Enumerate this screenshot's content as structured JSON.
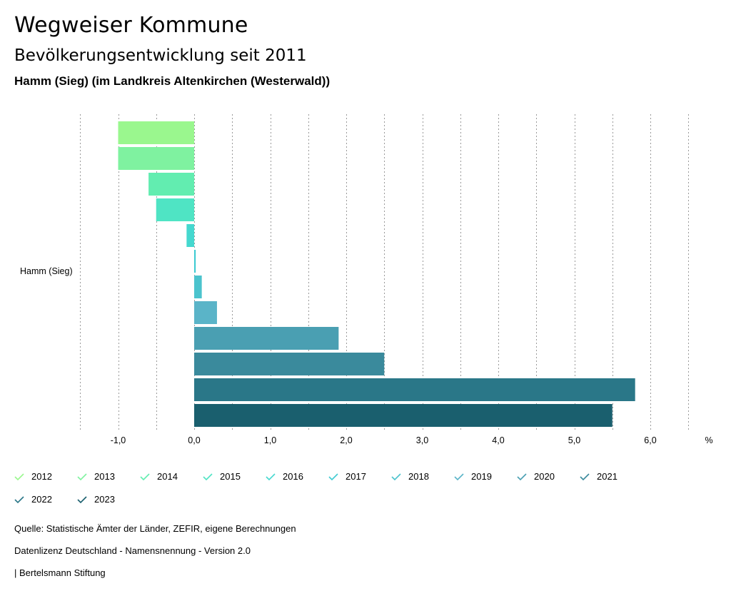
{
  "header": {
    "title": "Wegweiser Kommune",
    "subtitle": "Bevölkerungsentwicklung seit 2011",
    "region": "Hamm (Sieg) (im Landkreis Altenkirchen (Westerwald))"
  },
  "chart_data": {
    "type": "bar",
    "orientation": "horizontal",
    "categories": [
      "Hamm (Sieg)"
    ],
    "unit_label": "%",
    "xlim": [
      -1.5,
      6.5
    ],
    "ticks": [
      {
        "value": -1,
        "label": "-1,0"
      },
      {
        "value": 0,
        "label": "0,0"
      },
      {
        "value": 1,
        "label": "1,0"
      },
      {
        "value": 2,
        "label": "2,0"
      },
      {
        "value": 3,
        "label": "3,0"
      },
      {
        "value": 4,
        "label": "4,0"
      },
      {
        "value": 5,
        "label": "5,0"
      },
      {
        "value": 6,
        "label": "6,0"
      }
    ],
    "series": [
      {
        "name": "2012",
        "values": [
          -1.0
        ],
        "color": "#9af78e"
      },
      {
        "name": "2013",
        "values": [
          -1.0
        ],
        "color": "#7ff2a0"
      },
      {
        "name": "2014",
        "values": [
          -0.6
        ],
        "color": "#62edb0"
      },
      {
        "name": "2015",
        "values": [
          -0.5
        ],
        "color": "#4fe4c4"
      },
      {
        "name": "2016",
        "values": [
          -0.1
        ],
        "color": "#45d8cf"
      },
      {
        "name": "2017",
        "values": [
          0.02
        ],
        "color": "#40cbd2"
      },
      {
        "name": "2018",
        "values": [
          0.1
        ],
        "color": "#4bc3cd"
      },
      {
        "name": "2019",
        "values": [
          0.3
        ],
        "color": "#5ab4c8"
      },
      {
        "name": "2020",
        "values": [
          1.9
        ],
        "color": "#4a9fb2"
      },
      {
        "name": "2021",
        "values": [
          2.5
        ],
        "color": "#3a8a9c"
      },
      {
        "name": "2022",
        "values": [
          5.8
        ],
        "color": "#2a7788"
      },
      {
        "name": "2023",
        "values": [
          5.5
        ],
        "color": "#1a5f6e"
      }
    ]
  },
  "footer": {
    "source": "Quelle: Statistische Ämter der Länder, ZEFIR, eigene Berechnungen",
    "license": "Datenlizenz Deutschland - Namensnennung - Version 2.0",
    "publisher": "| Bertelsmann Stiftung"
  }
}
